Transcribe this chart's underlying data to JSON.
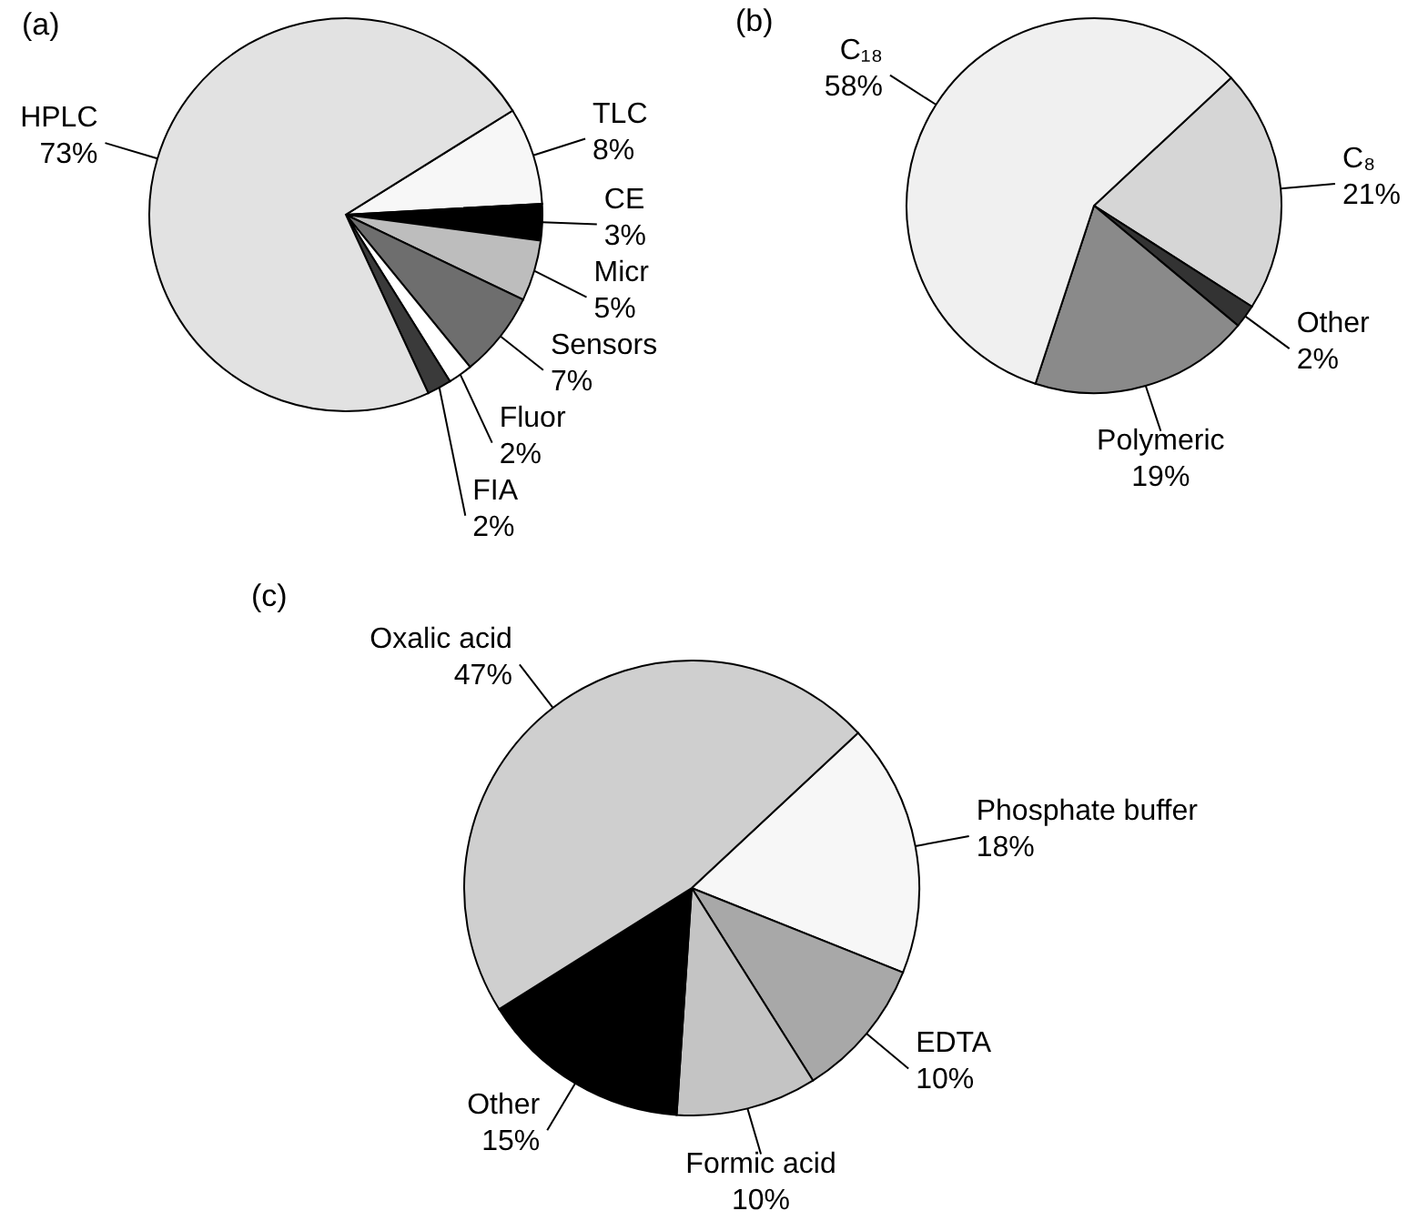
{
  "chart_data": [
    {
      "type": "pie",
      "title": "(a)",
      "categories": [
        "TLC",
        "CE",
        "Micr",
        "Sensors",
        "Fluor",
        "FIA",
        "HPLC"
      ],
      "values": [
        8,
        3,
        5,
        7,
        2,
        2,
        73
      ],
      "value_labels": [
        "8%",
        "3%",
        "5%",
        "7%",
        "2%",
        "2%",
        "73%"
      ],
      "colors": [
        "#f7f7f7",
        "#000000",
        "#bdbdbd",
        "#6e6e6e",
        "#ffffff",
        "#3a3a3a",
        "#e2e2e2"
      ]
    },
    {
      "type": "pie",
      "title": "(b)",
      "categories": [
        "C₈",
        "Other",
        "Polymeric",
        "C₁₈"
      ],
      "values": [
        21,
        2,
        19,
        58
      ],
      "value_labels": [
        "21%",
        "2%",
        "19%",
        "58%"
      ],
      "colors": [
        "#d6d6d6",
        "#333333",
        "#8a8a8a",
        "#f0f0f0"
      ]
    },
    {
      "type": "pie",
      "title": "(c)",
      "categories": [
        "Phosphate buffer",
        "EDTA",
        "Formic acid",
        "Other",
        "Oxalic acid"
      ],
      "values": [
        18,
        10,
        10,
        15,
        47
      ],
      "value_labels": [
        "18%",
        "10%",
        "10%",
        "15%",
        "47%"
      ],
      "colors": [
        "#f7f7f7",
        "#a8a8a8",
        "#c4c4c4",
        "#000000",
        "#cfcfcf"
      ]
    }
  ]
}
